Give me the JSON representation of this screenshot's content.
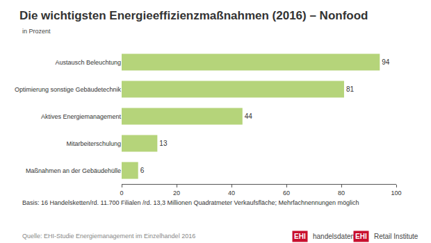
{
  "chart_data": {
    "type": "bar",
    "orientation": "horizontal",
    "title": "Die wichtigsten Energieeffizienzmaßnahmen (2016) – Nonfood",
    "subtitle": "in Prozent",
    "categories": [
      "Austausch Beleuchtung",
      "Optimierung sonstige Gebäudetechnik",
      "Aktives Energiemanagement",
      "Mitarbeiterschulung",
      "Maßnahmen an der Gebäudehülle"
    ],
    "values": [
      94,
      81,
      44,
      13,
      6
    ],
    "color": "#b5d47a",
    "data_labels": true,
    "xlim": [
      0,
      100
    ],
    "xticks": [
      0,
      20,
      40,
      60,
      80,
      100
    ],
    "grid": false,
    "note": "Basis: 16 Handelsketten/rd. 11.700 Filialen /rd. 13,3 Millionen Quadratmeter Verkaufsfläche; Mehrfachnennungen möglich",
    "source": "Quelle: EHI-Studie Energiemanagement im Einzelhandel 2016",
    "logos": [
      {
        "mark": "EHI",
        "text": "handelsdaten.de"
      },
      {
        "mark": "EHI",
        "text": "Retail Institute"
      }
    ]
  }
}
